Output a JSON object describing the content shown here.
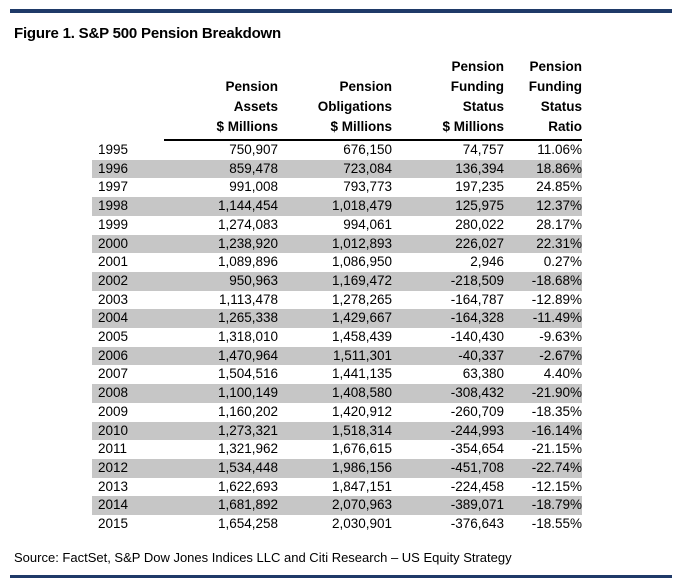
{
  "title": "Figure 1. S&P 500 Pension Breakdown",
  "headers": {
    "assets": "Pension\nAssets\n$ Millions",
    "obligations": "Pension\nObligations\n$ Millions",
    "status": "Pension\nFunding\nStatus\n$ Millions",
    "ratio": "Pension\nFunding\nStatus\nRatio"
  },
  "rows": [
    {
      "year": "1995",
      "assets": "750,907",
      "obligations": "676,150",
      "status": "74,757",
      "ratio": "11.06%"
    },
    {
      "year": "1996",
      "assets": "859,478",
      "obligations": "723,084",
      "status": "136,394",
      "ratio": "18.86%"
    },
    {
      "year": "1997",
      "assets": "991,008",
      "obligations": "793,773",
      "status": "197,235",
      "ratio": "24.85%"
    },
    {
      "year": "1998",
      "assets": "1,144,454",
      "obligations": "1,018,479",
      "status": "125,975",
      "ratio": "12.37%"
    },
    {
      "year": "1999",
      "assets": "1,274,083",
      "obligations": "994,061",
      "status": "280,022",
      "ratio": "28.17%"
    },
    {
      "year": "2000",
      "assets": "1,238,920",
      "obligations": "1,012,893",
      "status": "226,027",
      "ratio": "22.31%"
    },
    {
      "year": "2001",
      "assets": "1,089,896",
      "obligations": "1,086,950",
      "status": "2,946",
      "ratio": "0.27%"
    },
    {
      "year": "2002",
      "assets": "950,963",
      "obligations": "1,169,472",
      "status": "-218,509",
      "ratio": "-18.68%"
    },
    {
      "year": "2003",
      "assets": "1,113,478",
      "obligations": "1,278,265",
      "status": "-164,787",
      "ratio": "-12.89%"
    },
    {
      "year": "2004",
      "assets": "1,265,338",
      "obligations": "1,429,667",
      "status": "-164,328",
      "ratio": "-11.49%"
    },
    {
      "year": "2005",
      "assets": "1,318,010",
      "obligations": "1,458,439",
      "status": "-140,430",
      "ratio": "-9.63%"
    },
    {
      "year": "2006",
      "assets": "1,470,964",
      "obligations": "1,511,301",
      "status": "-40,337",
      "ratio": "-2.67%"
    },
    {
      "year": "2007",
      "assets": "1,504,516",
      "obligations": "1,441,135",
      "status": "63,380",
      "ratio": "4.40%"
    },
    {
      "year": "2008",
      "assets": "1,100,149",
      "obligations": "1,408,580",
      "status": "-308,432",
      "ratio": "-21.90%"
    },
    {
      "year": "2009",
      "assets": "1,160,202",
      "obligations": "1,420,912",
      "status": "-260,709",
      "ratio": "-18.35%"
    },
    {
      "year": "2010",
      "assets": "1,273,321",
      "obligations": "1,518,314",
      "status": "-244,993",
      "ratio": "-16.14%"
    },
    {
      "year": "2011",
      "assets": "1,321,962",
      "obligations": "1,676,615",
      "status": "-354,654",
      "ratio": "-21.15%"
    },
    {
      "year": "2012",
      "assets": "1,534,448",
      "obligations": "1,986,156",
      "status": "-451,708",
      "ratio": "-22.74%"
    },
    {
      "year": "2013",
      "assets": "1,622,693",
      "obligations": "1,847,151",
      "status": "-224,458",
      "ratio": "-12.15%"
    },
    {
      "year": "2014",
      "assets": "1,681,892",
      "obligations": "2,070,963",
      "status": "-389,071",
      "ratio": "-18.79%"
    },
    {
      "year": "2015",
      "assets": "1,654,258",
      "obligations": "2,030,901",
      "status": "-376,643",
      "ratio": "-18.55%"
    }
  ],
  "source": "Source: FactSet, S&P Dow Jones Indices LLC and Citi Research – US Equity Strategy",
  "colors": {
    "rule": "#1f3a68",
    "shaded_row": "#c6c6c6"
  }
}
